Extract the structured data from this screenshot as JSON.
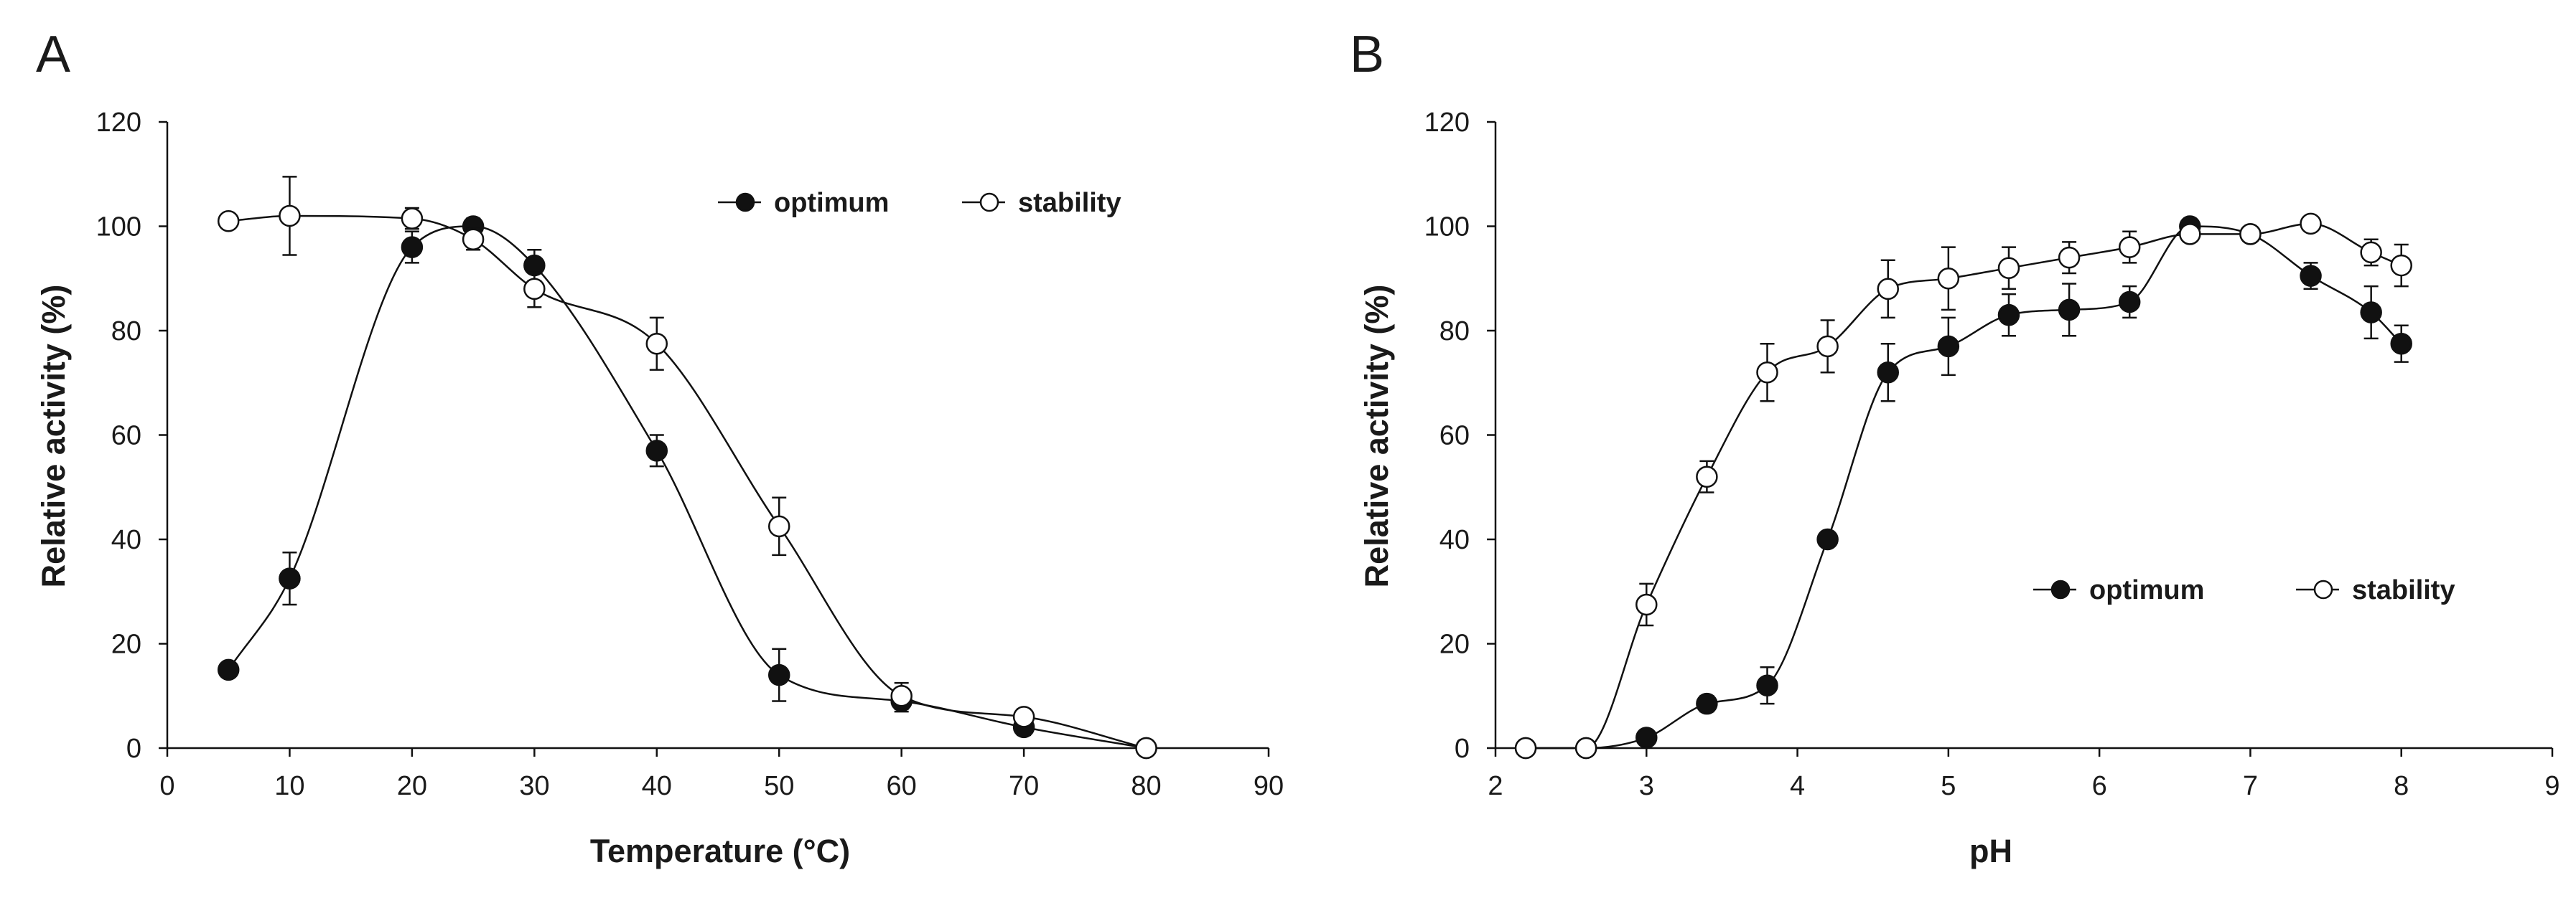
{
  "chart_data": [
    {
      "panel": "A",
      "type": "line",
      "xlabel": "Temperature (°C)",
      "ylabel": "Relative activity (%)",
      "xlim": [
        0,
        90
      ],
      "ylim": [
        0,
        120
      ],
      "xticks": [
        0,
        10,
        20,
        30,
        40,
        50,
        60,
        70,
        80,
        90
      ],
      "yticks": [
        0,
        20,
        40,
        60,
        80,
        100,
        120
      ],
      "grid": false,
      "legend_position": "top-right",
      "series": [
        {
          "name": "optimum",
          "marker": "filled-circle",
          "x": [
            5,
            10,
            20,
            25,
            30,
            40,
            50,
            60,
            70,
            80
          ],
          "y": [
            15,
            32.5,
            96,
            100,
            92.5,
            57,
            14,
            9,
            4,
            0
          ],
          "error": [
            0,
            5,
            3,
            1.5,
            3,
            3,
            5,
            2,
            1.5,
            0
          ]
        },
        {
          "name": "stability",
          "marker": "open-circle",
          "x": [
            5,
            10,
            20,
            25,
            30,
            40,
            50,
            60,
            70,
            80
          ],
          "y": [
            101,
            102,
            101.5,
            97.5,
            88,
            77.5,
            42.5,
            10,
            6,
            0
          ],
          "error": [
            0,
            7.5,
            2,
            2,
            3.5,
            5,
            5.5,
            2.5,
            1.5,
            0
          ]
        }
      ]
    },
    {
      "panel": "B",
      "type": "line",
      "xlabel": "pH",
      "ylabel": "Relative activity (%)",
      "xlim": [
        2,
        9
      ],
      "ylim": [
        0,
        120
      ],
      "xticks": [
        2,
        3,
        4,
        5,
        6,
        7,
        8,
        9
      ],
      "yticks": [
        0,
        20,
        40,
        60,
        80,
        100,
        120
      ],
      "grid": false,
      "legend_position": "center-right",
      "series": [
        {
          "name": "optimum",
          "marker": "filled-circle",
          "x": [
            2.2,
            2.6,
            3.0,
            3.4,
            3.8,
            4.2,
            4.6,
            5.0,
            5.4,
            5.8,
            6.2,
            6.6,
            7.0,
            7.4,
            7.8,
            8.0
          ],
          "y": [
            0,
            0,
            2,
            8.5,
            12,
            40,
            72,
            77,
            83,
            84,
            85.5,
            100,
            98.5,
            90.5,
            83.5,
            77.5
          ],
          "error": [
            0,
            0,
            0,
            1.5,
            3.5,
            0,
            5.5,
            5.5,
            4,
            5,
            3,
            1,
            1,
            2.5,
            5,
            3.5
          ]
        },
        {
          "name": "stability",
          "marker": "open-circle",
          "x": [
            2.2,
            2.6,
            3.0,
            3.4,
            3.8,
            4.2,
            4.6,
            5.0,
            5.4,
            5.8,
            6.2,
            6.6,
            7.0,
            7.4,
            7.8,
            8.0
          ],
          "y": [
            0,
            0,
            27.5,
            52,
            72,
            77,
            88,
            90,
            92,
            94,
            96,
            98.5,
            98.5,
            100.5,
            95,
            92.5
          ],
          "error": [
            0,
            0,
            4,
            3,
            5.5,
            5,
            5.5,
            6,
            4,
            3,
            3,
            0,
            0,
            0,
            2.5,
            4
          ]
        }
      ]
    }
  ]
}
